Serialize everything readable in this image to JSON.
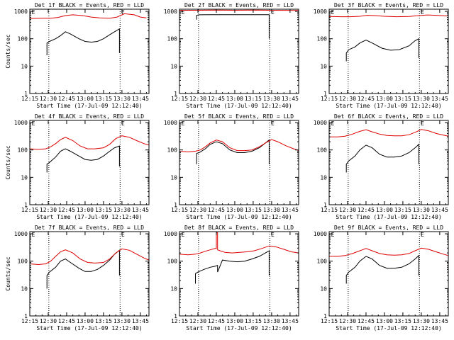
{
  "page": {
    "background": "#ffffff"
  },
  "colors": {
    "events": "#000000",
    "lld": "#dd0000",
    "axis": "#000000"
  },
  "chart_data": [
    {
      "type": "line",
      "title": "Det 1f BLACK = Events, RED = LLD",
      "xlabel": "Start Time (17-Jul-09 12:12:40)",
      "ylabel": "Counts/sec",
      "yscale": "log",
      "ylim": [
        1,
        1200
      ],
      "yticks": [
        "1",
        "10",
        "100",
        "1000"
      ],
      "xticks": [
        "12:15",
        "12:30",
        "12:45",
        "13:00",
        "13:15",
        "13:30",
        "13:45"
      ],
      "xlim_min": [
        735,
        832
      ],
      "xtick_min": [
        735,
        750,
        765,
        780,
        795,
        810,
        825
      ],
      "vlines_min": [
        750.5,
        808.5
      ],
      "markers": [
        {
          "label": "E",
          "x_min": 736.5
        },
        {
          "label": "E",
          "x_min": 809.5
        }
      ],
      "series": [
        {
          "color": "#000000",
          "x_min": [
            749,
            749,
            751,
            756,
            760,
            764,
            768,
            775,
            780,
            785,
            790,
            795,
            800,
            804,
            808,
            808
          ],
          "values": [
            25,
            70,
            80,
            100,
            130,
            180,
            150,
            100,
            80,
            75,
            80,
            100,
            140,
            180,
            230,
            30
          ]
        },
        {
          "color": "#dd0000",
          "x_min": [
            735,
            745,
            752,
            758,
            764,
            770,
            778,
            785,
            792,
            800,
            806,
            812,
            820,
            825,
            830
          ],
          "values": [
            550,
            560,
            560,
            600,
            700,
            750,
            700,
            620,
            580,
            560,
            620,
            820,
            750,
            620,
            580
          ]
        }
      ]
    },
    {
      "type": "line",
      "title": "Det 2f BLACK = Events, RED = LLD",
      "xlabel": "Start Time (17-Jul-09 12:12:40)",
      "ylabel": "",
      "yscale": "log",
      "ylim": [
        1,
        1200
      ],
      "yticks": [
        "1",
        "10",
        "100",
        "1000"
      ],
      "xticks": [
        "12:15",
        "12:30",
        "12:45",
        "13:00",
        "13:15",
        "13:30",
        "13:45"
      ],
      "xlim_min": [
        735,
        832
      ],
      "xtick_min": [
        735,
        750,
        765,
        780,
        795,
        810,
        825
      ],
      "vlines_min": [
        750.5,
        808.5
      ],
      "markers": [
        {
          "label": "E",
          "x_min": 736.5
        },
        {
          "label": "E",
          "x_min": 809.5
        }
      ],
      "series": [
        {
          "color": "#000000",
          "x_min": [
            749,
            749,
            751,
            760,
            770,
            780,
            790,
            800,
            808,
            808
          ],
          "values": [
            500,
            720,
            750,
            760,
            760,
            760,
            760,
            760,
            760,
            100
          ]
        },
        {
          "color": "#dd0000",
          "x_min": [
            735,
            750,
            765,
            780,
            795,
            810,
            832
          ],
          "values": [
            1100,
            1100,
            1120,
            1100,
            1120,
            1100,
            1080
          ]
        }
      ]
    },
    {
      "type": "line",
      "title": "Det 3f BLACK = Events, RED = LLD",
      "xlabel": "Start Time (17-Jul-09 12:12:40)",
      "ylabel": "",
      "yscale": "log",
      "ylim": [
        1,
        1200
      ],
      "yticks": [
        "1",
        "10",
        "100",
        "1000"
      ],
      "xticks": [
        "12:15",
        "12:30",
        "12:45",
        "13:00",
        "13:15",
        "13:30",
        "13:45"
      ],
      "xlim_min": [
        735,
        832
      ],
      "xtick_min": [
        735,
        750,
        765,
        780,
        795,
        810,
        825
      ],
      "vlines_min": [
        750.5,
        808.5
      ],
      "markers": [
        {
          "label": "E",
          "x_min": 736.5
        },
        {
          "label": "E",
          "x_min": 809.5
        }
      ],
      "series": [
        {
          "color": "#000000",
          "x_min": [
            749,
            749,
            751,
            756,
            760,
            765,
            770,
            778,
            785,
            792,
            800,
            805,
            808,
            808
          ],
          "values": [
            15,
            30,
            40,
            50,
            70,
            90,
            70,
            45,
            38,
            40,
            55,
            85,
            100,
            20
          ]
        },
        {
          "color": "#dd0000",
          "x_min": [
            735,
            745,
            752,
            760,
            766,
            772,
            780,
            790,
            800,
            808,
            815,
            822,
            832
          ],
          "values": [
            650,
            640,
            640,
            660,
            720,
            700,
            660,
            640,
            650,
            700,
            740,
            720,
            680
          ]
        }
      ]
    },
    {
      "type": "line",
      "title": "Det 4f BLACK = Events, RED = LLD",
      "xlabel": "Start Time (17-Jul-09 12:12:40)",
      "ylabel": "Counts/sec",
      "yscale": "log",
      "ylim": [
        1,
        1200
      ],
      "yticks": [
        "1",
        "10",
        "100",
        "1000"
      ],
      "xticks": [
        "12:15",
        "12:30",
        "12:45",
        "13:00",
        "13:15",
        "13:30",
        "13:45"
      ],
      "xlim_min": [
        735,
        832
      ],
      "xtick_min": [
        735,
        750,
        765,
        780,
        795,
        810,
        825
      ],
      "vlines_min": [
        750.5,
        808.5
      ],
      "markers": [
        {
          "label": "E",
          "x_min": 736.5
        },
        {
          "label": "E",
          "x_min": 809.5
        }
      ],
      "series": [
        {
          "color": "#000000",
          "x_min": [
            749,
            749,
            751,
            756,
            760,
            764,
            768,
            775,
            780,
            785,
            790,
            795,
            800,
            804,
            808,
            808
          ],
          "values": [
            15,
            30,
            35,
            55,
            90,
            110,
            90,
            60,
            45,
            42,
            45,
            60,
            90,
            120,
            140,
            25
          ]
        },
        {
          "color": "#dd0000",
          "x_min": [
            735,
            742,
            748,
            752,
            756,
            760,
            764,
            770,
            776,
            782,
            788,
            795,
            800,
            805,
            810,
            816,
            822,
            828,
            832
          ],
          "values": [
            110,
            105,
            110,
            130,
            170,
            240,
            290,
            220,
            140,
            110,
            110,
            120,
            160,
            260,
            330,
            290,
            220,
            170,
            150
          ]
        }
      ]
    },
    {
      "type": "line",
      "title": "Det 5f BLACK = Events, RED = LLD",
      "xlabel": "Start Time (17-Jul-09 12:12:40)",
      "ylabel": "",
      "yscale": "log",
      "ylim": [
        1,
        1200
      ],
      "yticks": [
        "1",
        "10",
        "100",
        "1000"
      ],
      "xticks": [
        "12:15",
        "12:30",
        "12:45",
        "13:00",
        "13:15",
        "13:30",
        "13:45"
      ],
      "xlim_min": [
        735,
        832
      ],
      "xtick_min": [
        735,
        750,
        765,
        780,
        795,
        810,
        825
      ],
      "vlines_min": [
        750.5,
        808.5
      ],
      "markers": [
        {
          "label": "E",
          "x_min": 736.5
        },
        {
          "label": "E",
          "x_min": 809.5
        }
      ],
      "series": [
        {
          "color": "#000000",
          "x_min": [
            749,
            749,
            751,
            756,
            760,
            765,
            770,
            776,
            782,
            788,
            794,
            800,
            805,
            808,
            808
          ],
          "values": [
            30,
            75,
            80,
            110,
            160,
            200,
            170,
            100,
            80,
            80,
            90,
            120,
            180,
            230,
            30
          ]
        },
        {
          "color": "#dd0000",
          "x_min": [
            735,
            742,
            748,
            752,
            756,
            760,
            765,
            770,
            776,
            782,
            788,
            794,
            800,
            805,
            810,
            815,
            822,
            828,
            832
          ],
          "values": [
            90,
            85,
            90,
            100,
            130,
            180,
            230,
            200,
            120,
            95,
            95,
            100,
            130,
            180,
            240,
            200,
            140,
            110,
            95
          ]
        }
      ]
    },
    {
      "type": "line",
      "title": "Det 6f BLACK = Events, RED = LLD",
      "xlabel": "Start Time (17-Jul-09 12:12:40)",
      "ylabel": "",
      "yscale": "log",
      "ylim": [
        1,
        1200
      ],
      "yticks": [
        "1",
        "10",
        "100",
        "1000"
      ],
      "xticks": [
        "12:15",
        "12:30",
        "12:45",
        "13:00",
        "13:15",
        "13:30",
        "13:45"
      ],
      "xlim_min": [
        735,
        832
      ],
      "xtick_min": [
        735,
        750,
        765,
        780,
        795,
        810,
        825
      ],
      "vlines_min": [
        750.5,
        808.5
      ],
      "markers": [
        {
          "label": "E",
          "x_min": 736.5
        },
        {
          "label": "E",
          "x_min": 809.5
        }
      ],
      "series": [
        {
          "color": "#000000",
          "x_min": [
            749,
            749,
            751,
            756,
            760,
            765,
            770,
            776,
            782,
            788,
            794,
            800,
            805,
            808,
            808
          ],
          "values": [
            15,
            30,
            40,
            60,
            100,
            150,
            120,
            70,
            55,
            55,
            60,
            80,
            120,
            160,
            30
          ]
        },
        {
          "color": "#dd0000",
          "x_min": [
            735,
            742,
            748,
            754,
            760,
            765,
            770,
            776,
            782,
            788,
            794,
            800,
            805,
            810,
            816,
            822,
            828,
            832
          ],
          "values": [
            300,
            300,
            320,
            380,
            480,
            550,
            460,
            380,
            340,
            330,
            330,
            360,
            440,
            560,
            500,
            400,
            350,
            320
          ]
        }
      ]
    },
    {
      "type": "line",
      "title": "Det 7f BLACK = Events, RED = LLD",
      "xlabel": "Start Time (17-Jul-09 12:12:40)",
      "ylabel": "Counts/sec",
      "yscale": "log",
      "ylim": [
        1,
        1200
      ],
      "yticks": [
        "1",
        "10",
        "100",
        "1000"
      ],
      "xticks": [
        "12:15",
        "12:30",
        "12:45",
        "13:00",
        "13:15",
        "13:30",
        "13:45"
      ],
      "xlim_min": [
        735,
        832
      ],
      "xtick_min": [
        735,
        750,
        765,
        780,
        795,
        810,
        825
      ],
      "vlines_min": [
        750.5,
        808.5
      ],
      "markers": [
        {
          "label": "E",
          "x_min": 736.5
        },
        {
          "label": "E",
          "x_min": 809.5
        }
      ],
      "series": [
        {
          "color": "#000000",
          "x_min": [
            749,
            749,
            751,
            756,
            760,
            764,
            768,
            775,
            780,
            785,
            790,
            795,
            800,
            804,
            808,
            808
          ],
          "values": [
            10,
            30,
            40,
            60,
            100,
            120,
            90,
            55,
            42,
            42,
            50,
            70,
            110,
            180,
            250,
            30
          ]
        },
        {
          "color": "#dd0000",
          "x_min": [
            735,
            742,
            748,
            752,
            756,
            760,
            764,
            770,
            776,
            782,
            788,
            795,
            800,
            805,
            810,
            816,
            822,
            828,
            832
          ],
          "values": [
            80,
            75,
            80,
            100,
            150,
            220,
            260,
            200,
            120,
            90,
            85,
            90,
            120,
            200,
            280,
            250,
            180,
            130,
            110
          ]
        }
      ]
    },
    {
      "type": "line",
      "title": "Det 8f BLACK = Events, RED = LLD",
      "xlabel": "Start Time (17-Jul-09 12:12:40)",
      "ylabel": "",
      "yscale": "log",
      "ylim": [
        1,
        1200
      ],
      "yticks": [
        "1",
        "10",
        "100",
        "1000"
      ],
      "xticks": [
        "12:15",
        "12:30",
        "12:45",
        "13:00",
        "13:15",
        "13:30",
        "13:45"
      ],
      "xlim_min": [
        735,
        832
      ],
      "xtick_min": [
        735,
        750,
        765,
        780,
        795,
        810,
        825
      ],
      "vlines_min": [
        750.5,
        808.5
      ],
      "markers": [
        {
          "label": "E",
          "x_min": 736.5
        },
        {
          "label": "E",
          "x_min": 809.5
        }
      ],
      "series": [
        {
          "color": "#000000",
          "x_min": [
            748,
            748,
            750,
            755,
            760,
            764,
            766,
            766,
            770,
            776,
            782,
            788,
            794,
            800,
            805,
            808,
            808
          ],
          "values": [
            15,
            35,
            40,
            50,
            60,
            65,
            70,
            40,
            110,
            100,
            95,
            100,
            120,
            150,
            200,
            240,
            30
          ]
        },
        {
          "color": "#dd0000",
          "x_min": [
            735,
            742,
            748,
            752,
            756,
            760,
            764,
            765,
            765,
            766,
            766,
            768,
            772,
            778,
            784,
            790,
            796,
            802,
            808,
            814,
            820,
            826,
            832
          ],
          "values": [
            180,
            170,
            180,
            200,
            230,
            260,
            290,
            290,
            1100,
            1100,
            260,
            240,
            210,
            200,
            210,
            220,
            240,
            290,
            360,
            330,
            270,
            220,
            200
          ]
        }
      ]
    },
    {
      "type": "line",
      "title": "Det 9f BLACK = Events, RED = LLD",
      "xlabel": "Start Time (17-Jul-09 12:12:40)",
      "ylabel": "",
      "yscale": "log",
      "ylim": [
        1,
        1200
      ],
      "yticks": [
        "1",
        "10",
        "100",
        "1000"
      ],
      "xticks": [
        "12:15",
        "12:30",
        "12:45",
        "13:00",
        "13:15",
        "13:30",
        "13:45"
      ],
      "xlim_min": [
        735,
        832
      ],
      "xtick_min": [
        735,
        750,
        765,
        780,
        795,
        810,
        825
      ],
      "vlines_min": [
        750.5,
        808.5
      ],
      "markers": [
        {
          "label": "E",
          "x_min": 736.5
        },
        {
          "label": "E",
          "x_min": 809.5
        }
      ],
      "series": [
        {
          "color": "#000000",
          "x_min": [
            749,
            749,
            751,
            756,
            760,
            765,
            770,
            776,
            782,
            788,
            794,
            800,
            805,
            808,
            808
          ],
          "values": [
            15,
            30,
            40,
            60,
            100,
            150,
            120,
            70,
            55,
            55,
            60,
            80,
            120,
            160,
            30
          ]
        },
        {
          "color": "#dd0000",
          "x_min": [
            735,
            742,
            748,
            754,
            760,
            765,
            770,
            776,
            782,
            788,
            794,
            800,
            805,
            810,
            816,
            822,
            828,
            832
          ],
          "values": [
            150,
            150,
            160,
            190,
            240,
            290,
            240,
            190,
            170,
            165,
            170,
            190,
            240,
            300,
            270,
            220,
            180,
            160
          ]
        }
      ]
    }
  ]
}
